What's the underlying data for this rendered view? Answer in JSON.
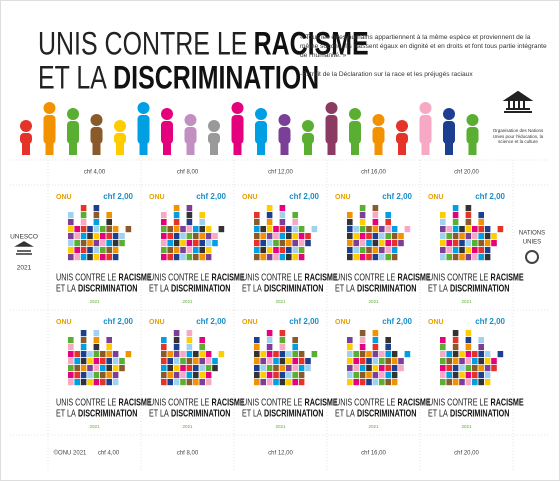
{
  "header": {
    "title_line1_light": "UNIS CONTRE LE",
    "title_line1_bold": "RACISME",
    "title_line2_light": "ET LA",
    "title_line2_bold": "DISCRIMINATION",
    "quote": "« Tous les êtres humains appartiennent à la même espèce et proviennent de la même souche. Ils naissent égaux en dignité et en droits et font tous partie intégrante de l'humanité. »",
    "source": "-Extrait de la Déclaration sur la race et les préjugés raciaux",
    "unesco_caption": "Organisation des Nations Unies pour l'éducation, la science et la culture"
  },
  "top_margin": [
    "chf 4,00",
    "chf 8,00",
    "chf 12,00",
    "chf 16,00",
    "chf 20,00"
  ],
  "left_margin": {
    "label": "UNESCO",
    "year": "2021"
  },
  "right_margin": {
    "line1": "NATIONS",
    "line2": "UNIES"
  },
  "stamps": [
    {
      "org": "ONU",
      "value": "chf 2,00",
      "line1_light": "UNIS CONTRE LE",
      "line1_bold": "RACISME",
      "line2_light": "ET LA",
      "line2_bold": "DISCRIMINATION",
      "year": "2021"
    },
    {
      "org": "ONU",
      "value": "chf 2,00",
      "line1_light": "UNIS CONTRE LE",
      "line1_bold": "RACISME",
      "line2_light": "ET LA",
      "line2_bold": "DISCRIMINATION",
      "year": "2021"
    },
    {
      "org": "ONU",
      "value": "chf 2,00",
      "line1_light": "UNIS CONTRE LE",
      "line1_bold": "RACISME",
      "line2_light": "ET LA",
      "line2_bold": "DISCRIMINATION",
      "year": "2021"
    },
    {
      "org": "ONU",
      "value": "chf 2,00",
      "line1_light": "UNIS CONTRE LE",
      "line1_bold": "RACISME",
      "line2_light": "ET LA",
      "line2_bold": "DISCRIMINATION",
      "year": "2021"
    },
    {
      "org": "ONU",
      "value": "chf 2,00",
      "line1_light": "UNIS CONTRE LE",
      "line1_bold": "RACISME",
      "line2_light": "ET LA",
      "line2_bold": "DISCRIMINATION",
      "year": "2021"
    },
    {
      "org": "ONU",
      "value": "chf 2,00",
      "line1_light": "UNIS CONTRE LE",
      "line1_bold": "RACISME",
      "line2_light": "ET LA",
      "line2_bold": "DISCRIMINATION",
      "year": "2021"
    },
    {
      "org": "ONU",
      "value": "chf 2,00",
      "line1_light": "UNIS CONTRE LE",
      "line1_bold": "RACISME",
      "line2_light": "ET LA",
      "line2_bold": "DISCRIMINATION",
      "year": "2021"
    },
    {
      "org": "ONU",
      "value": "chf 2,00",
      "line1_light": "UNIS CONTRE LE",
      "line1_bold": "RACISME",
      "line2_light": "ET LA",
      "line2_bold": "DISCRIMINATION",
      "year": "2021"
    },
    {
      "org": "ONU",
      "value": "chf 2,00",
      "line1_light": "UNIS CONTRE LE",
      "line1_bold": "RACISME",
      "line2_light": "ET LA",
      "line2_bold": "DISCRIMINATION",
      "year": "2021"
    },
    {
      "org": "ONU",
      "value": "chf 2,00",
      "line1_light": "UNIS CONTRE LE",
      "line1_bold": "RACISME",
      "line2_light": "ET LA",
      "line2_bold": "DISCRIMINATION",
      "year": "2021"
    }
  ],
  "bottom_margin": {
    "copyright": "©ONU 2021",
    "values": [
      "chf 4,00",
      "chf 8,00",
      "chf 12,00",
      "chf 16,00",
      "chf 20,00"
    ]
  }
}
